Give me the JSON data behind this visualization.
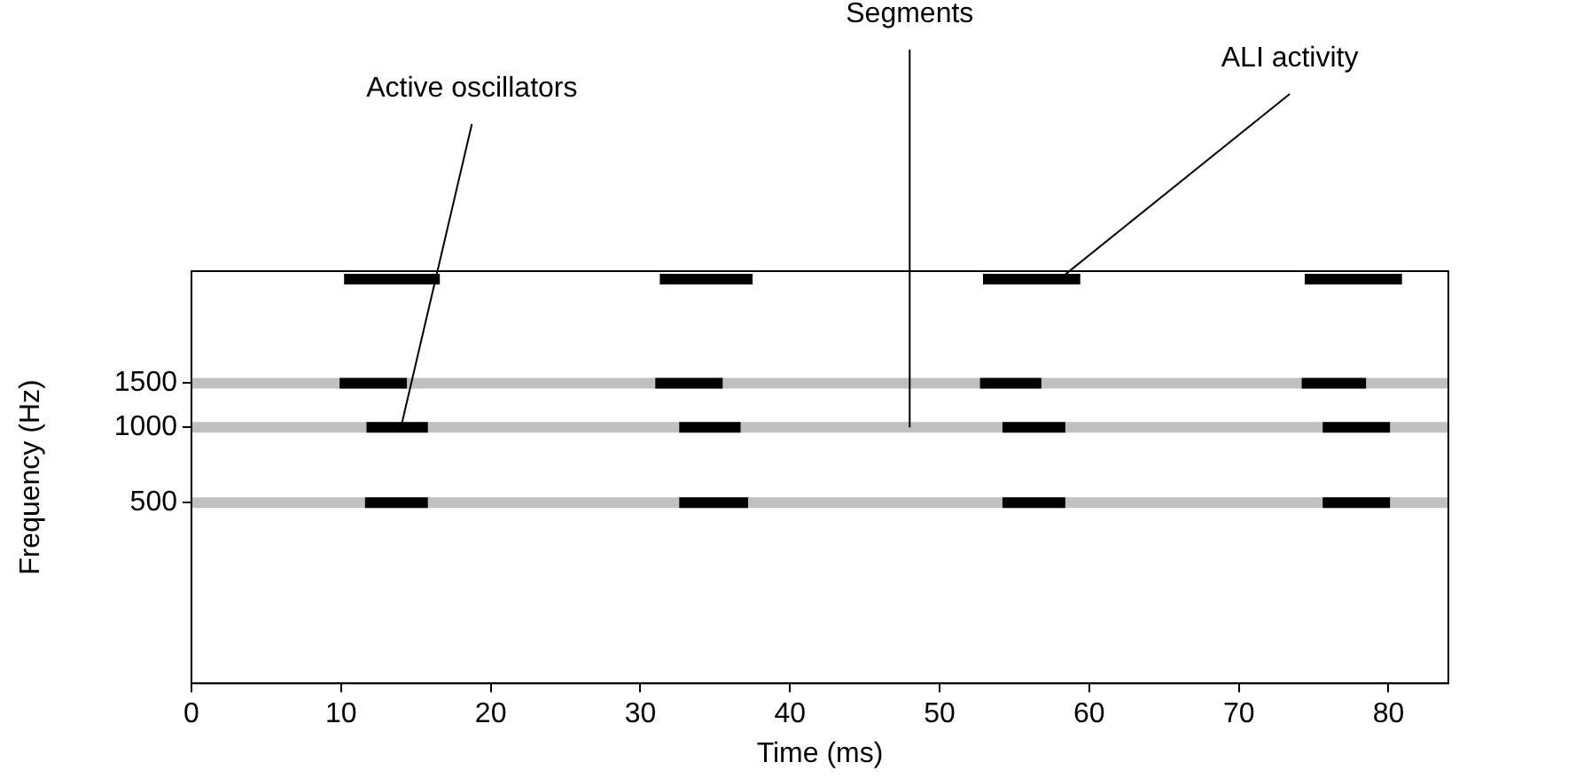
{
  "chart_data": {
    "type": "line",
    "xlabel": "Time (ms)",
    "ylabel": "Frequency (Hz)",
    "log": "y",
    "xlim": [
      0,
      84
    ],
    "xticks": [
      0,
      10,
      20,
      30,
      40,
      50,
      60,
      70,
      80
    ],
    "ylim": [
      95,
      4200
    ],
    "yticks": [
      500,
      1000,
      1500
    ],
    "grid": false,
    "legend": false,
    "marker": "none",
    "line_style": "solid",
    "series": [
      {
        "color": "#c0c0c0",
        "x": [
          0,
          84
        ],
        "values": [
          1500,
          1500
        ]
      },
      {
        "color": "#c0c0c0",
        "x": [
          0,
          84
        ],
        "values": [
          1000,
          1000
        ]
      },
      {
        "color": "#c0c0c0",
        "x": [
          0,
          84
        ],
        "values": [
          500,
          500
        ]
      },
      {
        "color": "#000000",
        "x": [
          10.2,
          16.6
        ],
        "values": [
          3900,
          3900
        ]
      },
      {
        "color": "#000000",
        "x": [
          31.3,
          37.5
        ],
        "values": [
          3900,
          3900
        ]
      },
      {
        "color": "#000000",
        "x": [
          52.9,
          59.4
        ],
        "values": [
          3900,
          3900
        ]
      },
      {
        "color": "#000000",
        "x": [
          74.4,
          80.9
        ],
        "values": [
          3900,
          3900
        ]
      },
      {
        "color": "#000000",
        "x": [
          9.9,
          14.4
        ],
        "values": [
          1500,
          1500
        ]
      },
      {
        "color": "#000000",
        "x": [
          31.0,
          35.5
        ],
        "values": [
          1500,
          1500
        ]
      },
      {
        "color": "#000000",
        "x": [
          52.7,
          56.8
        ],
        "values": [
          1500,
          1500
        ]
      },
      {
        "color": "#000000",
        "x": [
          74.2,
          78.5
        ],
        "values": [
          1500,
          1500
        ]
      },
      {
        "color": "#000000",
        "x": [
          11.7,
          15.8
        ],
        "values": [
          1000,
          1000
        ]
      },
      {
        "color": "#000000",
        "x": [
          32.6,
          36.7
        ],
        "values": [
          1000,
          1000
        ]
      },
      {
        "color": "#000000",
        "x": [
          54.2,
          58.4
        ],
        "values": [
          1000,
          1000
        ]
      },
      {
        "color": "#000000",
        "x": [
          75.6,
          80.1
        ],
        "values": [
          1000,
          1000
        ]
      },
      {
        "color": "#000000",
        "x": [
          11.6,
          15.8
        ],
        "values": [
          500,
          500
        ]
      },
      {
        "color": "#000000",
        "x": [
          32.6,
          37.2
        ],
        "values": [
          500,
          500
        ]
      },
      {
        "color": "#000000",
        "x": [
          54.2,
          58.4
        ],
        "values": [
          500,
          500
        ]
      },
      {
        "color": "#000000",
        "x": [
          75.6,
          80.1
        ],
        "values": [
          500,
          500
        ]
      }
    ],
    "annotations": [
      {
        "text": "Active oscillators",
        "x": 14,
        "y": 1000
      },
      {
        "text": "Segments",
        "x": 48,
        "y": 1000
      },
      {
        "text": "ALI activity",
        "x": 58,
        "y": 3900
      }
    ]
  }
}
